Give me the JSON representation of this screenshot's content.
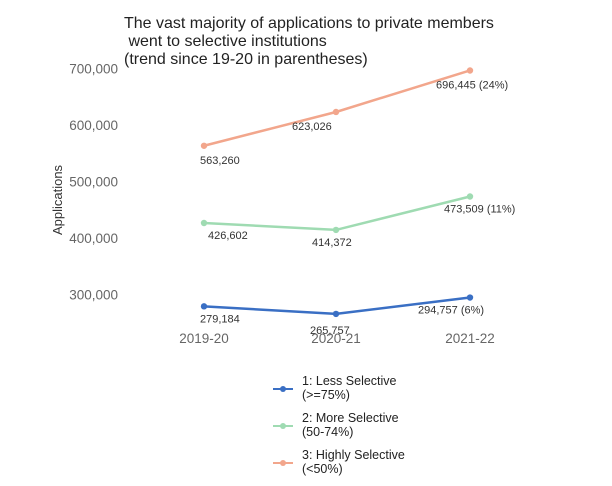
{
  "chart_data": {
    "type": "line",
    "title_lines": [
      "The vast majority of applications to private members",
      " went to selective institutions",
      "(trend since 19-20 in parentheses)"
    ],
    "ylabel": "Applications",
    "xlabel": "",
    "categories": [
      "2019-20",
      "2020-21",
      "2021-22"
    ],
    "yticks": [
      300000,
      400000,
      500000,
      600000,
      700000
    ],
    "ytick_labels": [
      "300,000",
      "400,000",
      "500,000",
      "600,000",
      "700,000"
    ],
    "ylim": [
      255000,
      715000
    ],
    "grid": false,
    "legend_position": "bottom",
    "series": [
      {
        "name_lines": [
          "1: Less Selective",
          "(>=75%)"
        ],
        "color": "#3a6fc4",
        "values": [
          279184,
          265757,
          294757
        ],
        "labels": [
          "279,184",
          "265,757",
          "294,757 (6%)"
        ]
      },
      {
        "name_lines": [
          "2: More Selective",
          "(50-74%)"
        ],
        "color": "#9fdbb2",
        "values": [
          426602,
          414372,
          473509
        ],
        "labels": [
          "426,602",
          "414,372",
          "473,509 (11%)"
        ]
      },
      {
        "name_lines": [
          "3: Highly Selective",
          "(<50%)"
        ],
        "color": "#f2a68c",
        "values": [
          563260,
          623026,
          696445
        ],
        "labels": [
          "563,260",
          "623,026",
          "696,445 (24%)"
        ]
      }
    ]
  }
}
